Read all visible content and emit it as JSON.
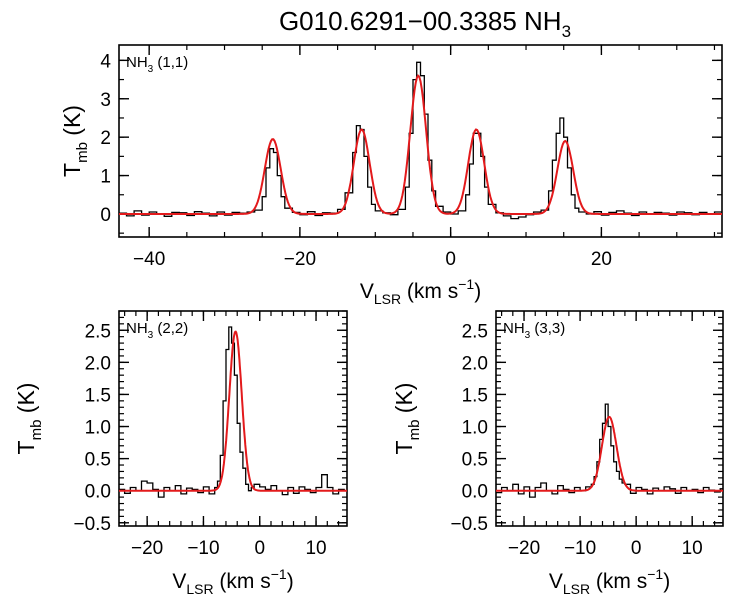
{
  "title": {
    "main": "G010.6291−00.3385 NH",
    "sub": "3"
  },
  "colors": {
    "observed": "#000000",
    "fit": "#e31a1c",
    "axes": "#000000"
  },
  "chart_data": [
    {
      "id": "p11",
      "type": "line",
      "label": {
        "main": "NH",
        "sub": "3",
        "suffix": " (1,1)"
      },
      "xlabel": {
        "main": "V",
        "sub": "LSR",
        "rest": " (km s",
        "sup": "−1",
        "close": ")"
      },
      "ylabel": {
        "main": "T",
        "sub": "mb",
        "rest": " (K)"
      },
      "xlim": [
        -44,
        36
      ],
      "ylim": [
        -0.6,
        4.4
      ],
      "xticks": [
        -40,
        -20,
        0,
        20
      ],
      "xtick_labels": [
        "−40",
        "−20",
        "0",
        "20"
      ],
      "yticks": [
        0,
        1,
        2,
        3,
        4
      ],
      "ytick_labels": [
        "0",
        "1",
        "2",
        "3",
        "4"
      ],
      "xminor": 5,
      "yminor": 0.5,
      "show_xlabel": true,
      "series": [
        {
          "name": "observed",
          "style": "step",
          "x": [
            -44.0,
            -43.0,
            -42.0,
            -41.0,
            -40.0,
            -39.0,
            -38.0,
            -37.0,
            -36.0,
            -35.0,
            -34.0,
            -33.0,
            -32.0,
            -31.0,
            -30.0,
            -29.0,
            -28.0,
            -27.0,
            -26.0,
            -25.0,
            -24.5,
            -24.0,
            -23.5,
            -23.0,
            -22.5,
            -22.0,
            -21.0,
            -20.0,
            -19.0,
            -18.0,
            -17.0,
            -16.0,
            -15.0,
            -14.0,
            -13.0,
            -12.5,
            -12.0,
            -11.5,
            -11.0,
            -10.5,
            -10.0,
            -9.0,
            -8.0,
            -7.0,
            -6.0,
            -5.5,
            -5.0,
            -4.5,
            -4.0,
            -3.5,
            -3.0,
            -2.5,
            -2.0,
            -1.0,
            0.0,
            1.0,
            2.0,
            2.5,
            3.0,
            3.5,
            4.0,
            4.5,
            5.0,
            6.0,
            7.0,
            8.0,
            9.0,
            10.0,
            11.0,
            12.0,
            13.0,
            13.5,
            14.0,
            14.5,
            15.0,
            15.5,
            16.0,
            16.5,
            17.0,
            18.0,
            19.0,
            20.0,
            21.0,
            22.0,
            23.0,
            24.0,
            25.0,
            26.0,
            27.0,
            28.0,
            29.0,
            30.0,
            31.0,
            32.0,
            33.0,
            34.0,
            35.0,
            36.0
          ],
          "values": [
            0.02,
            -0.05,
            0.08,
            -0.03,
            0.05,
            0.01,
            -0.06,
            0.04,
            0.03,
            -0.04,
            0.06,
            0.02,
            -0.05,
            0.05,
            -0.03,
            0.04,
            0.02,
            0.05,
            0.1,
            0.45,
            1.2,
            1.7,
            1.6,
            1.0,
            0.45,
            0.15,
            0.04,
            -0.02,
            0.06,
            -0.04,
            0.03,
            0.02,
            0.12,
            0.55,
            1.6,
            2.3,
            2.2,
            1.5,
            0.7,
            0.25,
            0.08,
            0.03,
            -0.02,
            0.12,
            0.7,
            2.1,
            3.5,
            3.95,
            3.6,
            2.6,
            1.4,
            0.6,
            0.2,
            0.05,
            0.0,
            0.08,
            0.5,
            1.3,
            2.1,
            2.1,
            1.5,
            0.7,
            0.25,
            0.03,
            -0.05,
            -0.12,
            -0.08,
            -0.02,
            0.05,
            0.1,
            0.6,
            1.4,
            2.1,
            2.5,
            2.0,
            1.2,
            0.5,
            0.15,
            0.05,
            0.0,
            0.06,
            -0.03,
            0.04,
            0.08,
            0.02,
            -0.04,
            0.05,
            0.01,
            0.04,
            0.02,
            -0.03,
            0.05,
            0.03,
            -0.02,
            0.04,
            0.01,
            0.05,
            0.02
          ]
        },
        {
          "name": "fit",
          "style": "gaussian",
          "components": [
            {
              "amp": 1.95,
              "center": -23.6,
              "sigma": 1.05
            },
            {
              "amp": 2.2,
              "center": -11.8,
              "sigma": 1.05
            },
            {
              "amp": 3.6,
              "center": -4.3,
              "sigma": 1.05
            },
            {
              "amp": 2.2,
              "center": 3.4,
              "sigma": 1.05
            },
            {
              "amp": 1.9,
              "center": 15.2,
              "sigma": 1.05
            }
          ]
        }
      ]
    },
    {
      "id": "p22",
      "type": "line",
      "label": {
        "main": "NH",
        "sub": "3",
        "suffix": " (2,2)"
      },
      "xlabel": {
        "main": "V",
        "sub": "LSR",
        "rest": " (km s",
        "sup": "−1",
        "close": ")"
      },
      "ylabel": {
        "main": "T",
        "sub": "mb",
        "rest": " (K)"
      },
      "xlim": [
        -25,
        15.5
      ],
      "ylim": [
        -0.55,
        2.8
      ],
      "xticks": [
        -20,
        -10,
        0,
        10
      ],
      "xtick_labels": [
        "−20",
        "−10",
        "0",
        "10"
      ],
      "yticks": [
        -0.5,
        0.0,
        0.5,
        1.0,
        1.5,
        2.0,
        2.5
      ],
      "ytick_labels": [
        "−0.5",
        "0.0",
        "0.5",
        "1.0",
        "1.5",
        "2.0",
        "2.5"
      ],
      "xminor": 2,
      "yminor": 0.1,
      "show_xlabel": true,
      "series": [
        {
          "name": "observed",
          "style": "step",
          "x": [
            -25.0,
            -24.0,
            -23.0,
            -22.0,
            -21.0,
            -20.0,
            -19.0,
            -18.0,
            -17.0,
            -16.0,
            -15.0,
            -14.0,
            -13.0,
            -12.0,
            -11.0,
            -10.0,
            -9.0,
            -8.0,
            -7.5,
            -7.0,
            -6.5,
            -6.0,
            -5.5,
            -5.0,
            -4.5,
            -4.0,
            -3.5,
            -3.0,
            -2.5,
            -2.0,
            -1.5,
            -1.0,
            0.0,
            1.0,
            2.0,
            3.0,
            4.0,
            5.0,
            6.0,
            7.0,
            8.0,
            9.0,
            10.0,
            11.0,
            12.0,
            13.0,
            14.0,
            15.0
          ],
          "values": [
            0.02,
            -0.04,
            0.05,
            0.0,
            0.15,
            0.12,
            0.02,
            -0.1,
            0.05,
            0.0,
            0.08,
            -0.05,
            0.04,
            0.02,
            -0.03,
            0.06,
            -0.05,
            0.05,
            0.15,
            0.55,
            1.4,
            2.2,
            2.55,
            2.3,
            1.8,
            1.05,
            0.6,
            0.35,
            0.1,
            0.0,
            0.05,
            0.1,
            0.06,
            0.02,
            0.08,
            0.0,
            -0.06,
            0.05,
            -0.04,
            0.06,
            0.02,
            -0.03,
            0.05,
            0.25,
            0.05,
            -0.05,
            0.02,
            0.0
          ]
        },
        {
          "name": "fit",
          "style": "gaussian",
          "components": [
            {
              "amp": 2.48,
              "center": -4.3,
              "sigma": 1.1
            }
          ]
        }
      ]
    },
    {
      "id": "p33",
      "type": "line",
      "label": {
        "main": "NH",
        "sub": "3",
        "suffix": " (3,3)"
      },
      "xlabel": {
        "main": "V",
        "sub": "LSR",
        "rest": " (km s",
        "sup": "−1",
        "close": ")"
      },
      "ylabel": {
        "main": "T",
        "sub": "mb",
        "rest": " (K)"
      },
      "xlim": [
        -25,
        15.5
      ],
      "ylim": [
        -0.55,
        2.8
      ],
      "xticks": [
        -20,
        -10,
        0,
        10
      ],
      "xtick_labels": [
        "−20",
        "−10",
        "0",
        "10"
      ],
      "yticks": [
        -0.5,
        0.0,
        0.5,
        1.0,
        1.5,
        2.0,
        2.5
      ],
      "ytick_labels": [
        "−0.5",
        "0.0",
        "0.5",
        "1.0",
        "1.5",
        "2.0",
        "2.5"
      ],
      "xminor": 2,
      "yminor": 0.1,
      "show_xlabel": true,
      "series": [
        {
          "name": "observed",
          "style": "step",
          "x": [
            -25.0,
            -24.0,
            -23.0,
            -22.0,
            -21.0,
            -20.0,
            -19.0,
            -18.0,
            -17.0,
            -16.0,
            -15.0,
            -14.0,
            -13.0,
            -12.0,
            -11.0,
            -10.0,
            -9.0,
            -8.0,
            -7.5,
            -7.0,
            -6.5,
            -6.0,
            -5.5,
            -5.0,
            -4.5,
            -4.0,
            -3.5,
            -3.0,
            -2.5,
            -2.0,
            -1.0,
            0.0,
            1.0,
            2.0,
            3.0,
            4.0,
            5.0,
            6.0,
            7.0,
            8.0,
            9.0,
            10.0,
            11.0,
            12.0,
            13.0,
            14.0,
            15.0
          ],
          "values": [
            -0.03,
            0.05,
            0.0,
            0.1,
            -0.05,
            0.06,
            -0.1,
            0.05,
            0.12,
            0.0,
            -0.05,
            0.08,
            0.02,
            -0.03,
            0.05,
            0.0,
            0.06,
            0.1,
            0.22,
            0.45,
            0.8,
            1.05,
            1.35,
            1.0,
            0.7,
            0.45,
            0.3,
            0.18,
            0.12,
            0.1,
            -0.04,
            0.05,
            0.02,
            -0.05,
            0.04,
            0.0,
            0.06,
            0.03,
            -0.04,
            0.05,
            0.0,
            0.02,
            -0.03,
            0.05,
            0.01,
            -0.02,
            0.03
          ]
        },
        {
          "name": "fit",
          "style": "gaussian",
          "components": [
            {
              "amp": 1.15,
              "center": -4.8,
              "sigma": 1.3
            }
          ]
        }
      ]
    }
  ]
}
